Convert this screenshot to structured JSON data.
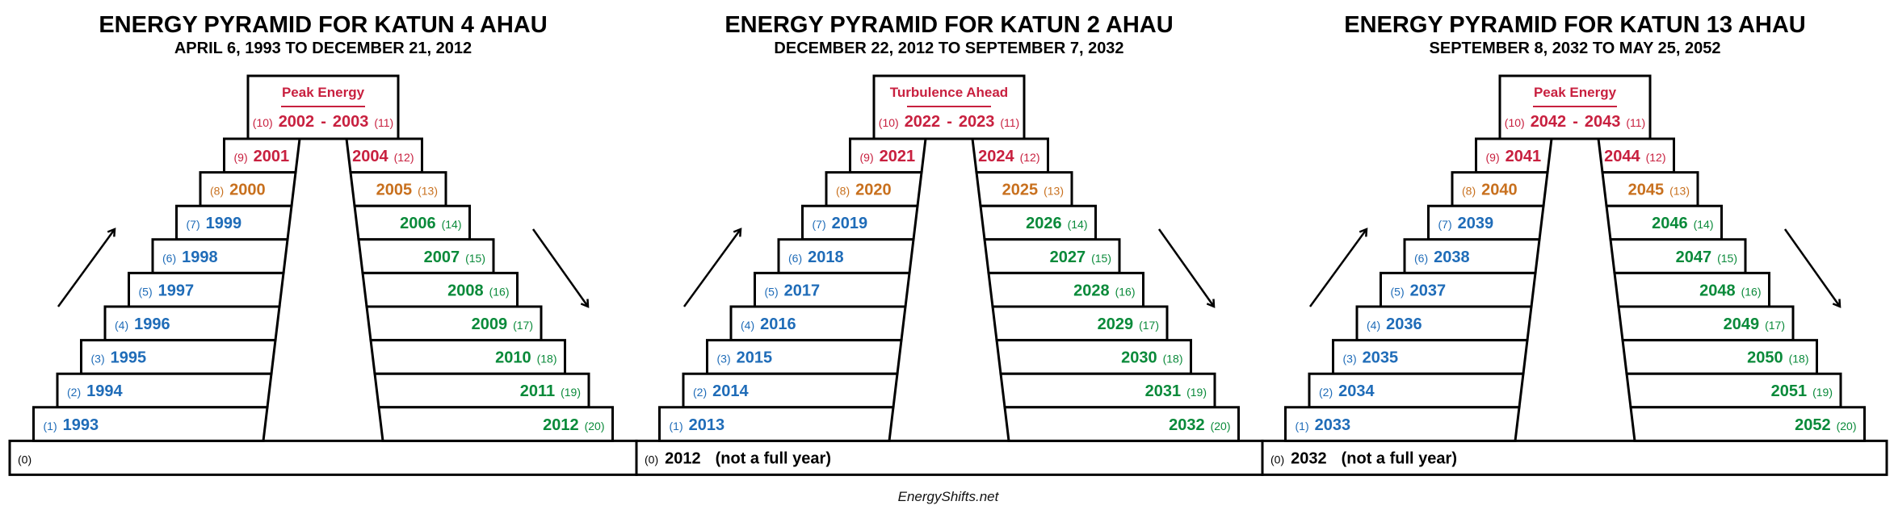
{
  "palette": {
    "red": "#c8203f",
    "orange": "#c8701e",
    "blue": "#1f6cb8",
    "green": "#0a8a3a",
    "black": "#000000"
  },
  "footer": "EnergyShifts.net",
  "panels": [
    {
      "title": "ENERGY PYRAMID FOR KATUN 4 AHAU",
      "subtitle": "APRIL 6, 1993 TO DECEMBER 21, 2012",
      "peak": {
        "label": "Peak Energy",
        "left_num": "(10)",
        "left_year": "2002",
        "dash": "-",
        "right_year": "2003",
        "right_num": "(11)"
      },
      "left_rows": [
        {
          "num": "(9)",
          "year": "2001",
          "color": "red"
        },
        {
          "num": "(8)",
          "year": "2000",
          "color": "orange"
        },
        {
          "num": "(7)",
          "year": "1999",
          "color": "blue"
        },
        {
          "num": "(6)",
          "year": "1998",
          "color": "blue"
        },
        {
          "num": "(5)",
          "year": "1997",
          "color": "blue"
        },
        {
          "num": "(4)",
          "year": "1996",
          "color": "blue"
        },
        {
          "num": "(3)",
          "year": "1995",
          "color": "blue"
        },
        {
          "num": "(2)",
          "year": "1994",
          "color": "blue"
        },
        {
          "num": "(1)",
          "year": "1993",
          "color": "blue"
        }
      ],
      "right_rows": [
        {
          "num": "(12)",
          "year": "2004",
          "color": "red"
        },
        {
          "num": "(13)",
          "year": "2005",
          "color": "orange"
        },
        {
          "num": "(14)",
          "year": "2006",
          "color": "green"
        },
        {
          "num": "(15)",
          "year": "2007",
          "color": "green"
        },
        {
          "num": "(16)",
          "year": "2008",
          "color": "green"
        },
        {
          "num": "(17)",
          "year": "2009",
          "color": "green"
        },
        {
          "num": "(18)",
          "year": "2010",
          "color": "green"
        },
        {
          "num": "(19)",
          "year": "2011",
          "color": "green"
        },
        {
          "num": "(20)",
          "year": "2012",
          "color": "green"
        }
      ],
      "base": {
        "num": "(0)",
        "year": "",
        "note": ""
      }
    },
    {
      "title": "ENERGY PYRAMID FOR KATUN 2 AHAU",
      "subtitle": "DECEMBER 22, 2012 TO SEPTEMBER 7, 2032",
      "peak": {
        "label": "Turbulence Ahead",
        "left_num": "(10)",
        "left_year": "2022",
        "dash": "-",
        "right_year": "2023",
        "right_num": "(11)"
      },
      "left_rows": [
        {
          "num": "(9)",
          "year": "2021",
          "color": "red"
        },
        {
          "num": "(8)",
          "year": "2020",
          "color": "orange"
        },
        {
          "num": "(7)",
          "year": "2019",
          "color": "blue"
        },
        {
          "num": "(6)",
          "year": "2018",
          "color": "blue"
        },
        {
          "num": "(5)",
          "year": "2017",
          "color": "blue"
        },
        {
          "num": "(4)",
          "year": "2016",
          "color": "blue"
        },
        {
          "num": "(3)",
          "year": "2015",
          "color": "blue"
        },
        {
          "num": "(2)",
          "year": "2014",
          "color": "blue"
        },
        {
          "num": "(1)",
          "year": "2013",
          "color": "blue"
        }
      ],
      "right_rows": [
        {
          "num": "(12)",
          "year": "2024",
          "color": "red"
        },
        {
          "num": "(13)",
          "year": "2025",
          "color": "orange"
        },
        {
          "num": "(14)",
          "year": "2026",
          "color": "green"
        },
        {
          "num": "(15)",
          "year": "2027",
          "color": "green"
        },
        {
          "num": "(16)",
          "year": "2028",
          "color": "green"
        },
        {
          "num": "(17)",
          "year": "2029",
          "color": "green"
        },
        {
          "num": "(18)",
          "year": "2030",
          "color": "green"
        },
        {
          "num": "(19)",
          "year": "2031",
          "color": "green"
        },
        {
          "num": "(20)",
          "year": "2032",
          "color": "green"
        }
      ],
      "base": {
        "num": "(0)",
        "year": "2012",
        "note": "(not a full year)"
      }
    },
    {
      "title": "ENERGY PYRAMID FOR KATUN 13 AHAU",
      "subtitle": "SEPTEMBER 8, 2032 TO MAY 25, 2052",
      "peak": {
        "label": "Peak Energy",
        "left_num": "(10)",
        "left_year": "2042",
        "dash": "-",
        "right_year": "2043",
        "right_num": "(11)"
      },
      "left_rows": [
        {
          "num": "(9)",
          "year": "2041",
          "color": "red"
        },
        {
          "num": "(8)",
          "year": "2040",
          "color": "orange"
        },
        {
          "num": "(7)",
          "year": "2039",
          "color": "blue"
        },
        {
          "num": "(6)",
          "year": "2038",
          "color": "blue"
        },
        {
          "num": "(5)",
          "year": "2037",
          "color": "blue"
        },
        {
          "num": "(4)",
          "year": "2036",
          "color": "blue"
        },
        {
          "num": "(3)",
          "year": "2035",
          "color": "blue"
        },
        {
          "num": "(2)",
          "year": "2034",
          "color": "blue"
        },
        {
          "num": "(1)",
          "year": "2033",
          "color": "blue"
        }
      ],
      "right_rows": [
        {
          "num": "(12)",
          "year": "2044",
          "color": "red"
        },
        {
          "num": "(13)",
          "year": "2045",
          "color": "orange"
        },
        {
          "num": "(14)",
          "year": "2046",
          "color": "green"
        },
        {
          "num": "(15)",
          "year": "2047",
          "color": "green"
        },
        {
          "num": "(16)",
          "year": "2048",
          "color": "green"
        },
        {
          "num": "(17)",
          "year": "2049",
          "color": "green"
        },
        {
          "num": "(18)",
          "year": "2050",
          "color": "green"
        },
        {
          "num": "(19)",
          "year": "2051",
          "color": "green"
        },
        {
          "num": "(20)",
          "year": "2052",
          "color": "green"
        }
      ],
      "base": {
        "num": "(0)",
        "year": "2032",
        "note": "(not a full year)"
      }
    }
  ]
}
